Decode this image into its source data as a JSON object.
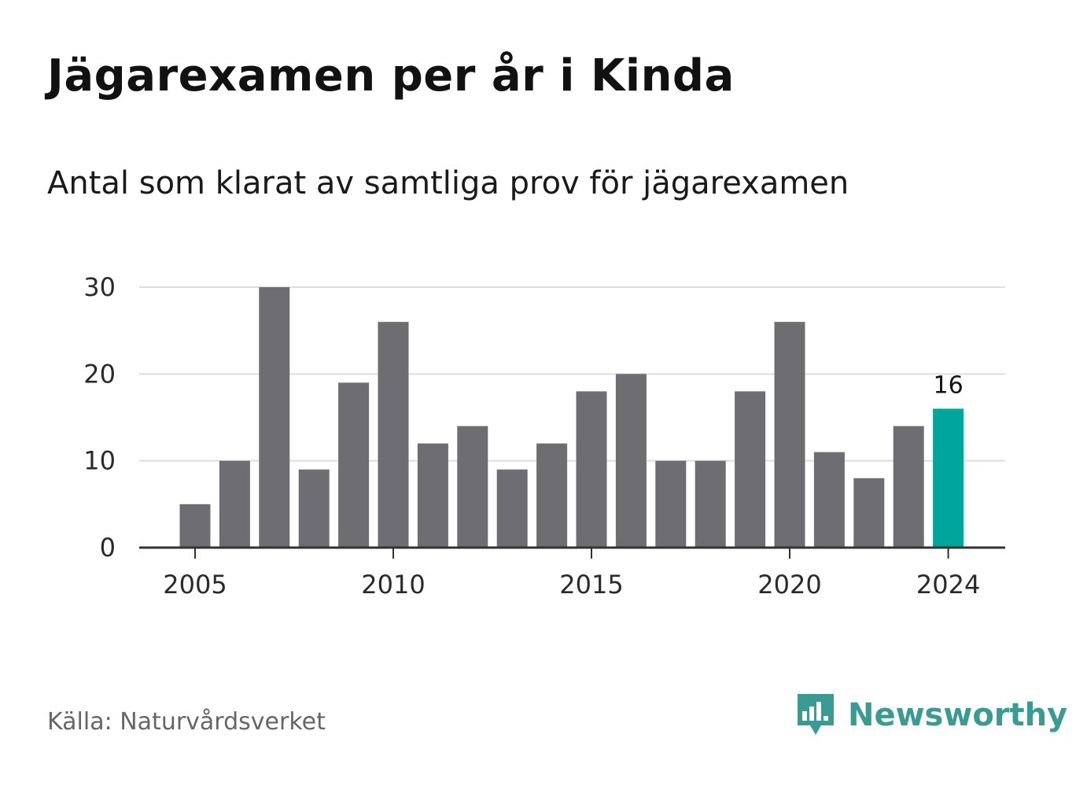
{
  "header": {
    "title": "Jägarexamen per år i Kinda",
    "subtitle": "Antal som klarat av samtliga prov för jägarexamen"
  },
  "footer": {
    "source": "Källa: Naturvårdsverket",
    "brand": "Newsworthy"
  },
  "colors": {
    "bar": "#6e6d72",
    "highlight": "#00a59b",
    "grid": "#dddddd",
    "axis": "#333333",
    "brand": "#3a9b92"
  },
  "chart_data": {
    "type": "bar",
    "title": "",
    "xlabel": "",
    "ylabel": "",
    "categories": [
      2005,
      2006,
      2007,
      2008,
      2009,
      2010,
      2011,
      2012,
      2013,
      2014,
      2015,
      2016,
      2017,
      2018,
      2019,
      2020,
      2021,
      2022,
      2023,
      2024
    ],
    "values": [
      5,
      10,
      30,
      9,
      19,
      26,
      12,
      14,
      9,
      12,
      18,
      20,
      10,
      10,
      18,
      26,
      11,
      8,
      14,
      16
    ],
    "highlight_category": 2024,
    "value_label": "16",
    "ylim": [
      0,
      30
    ],
    "yticks": [
      0,
      10,
      20,
      30
    ],
    "xticks": [
      2005,
      2010,
      2015,
      2020,
      2024
    ],
    "grid": true,
    "legend": "none"
  }
}
